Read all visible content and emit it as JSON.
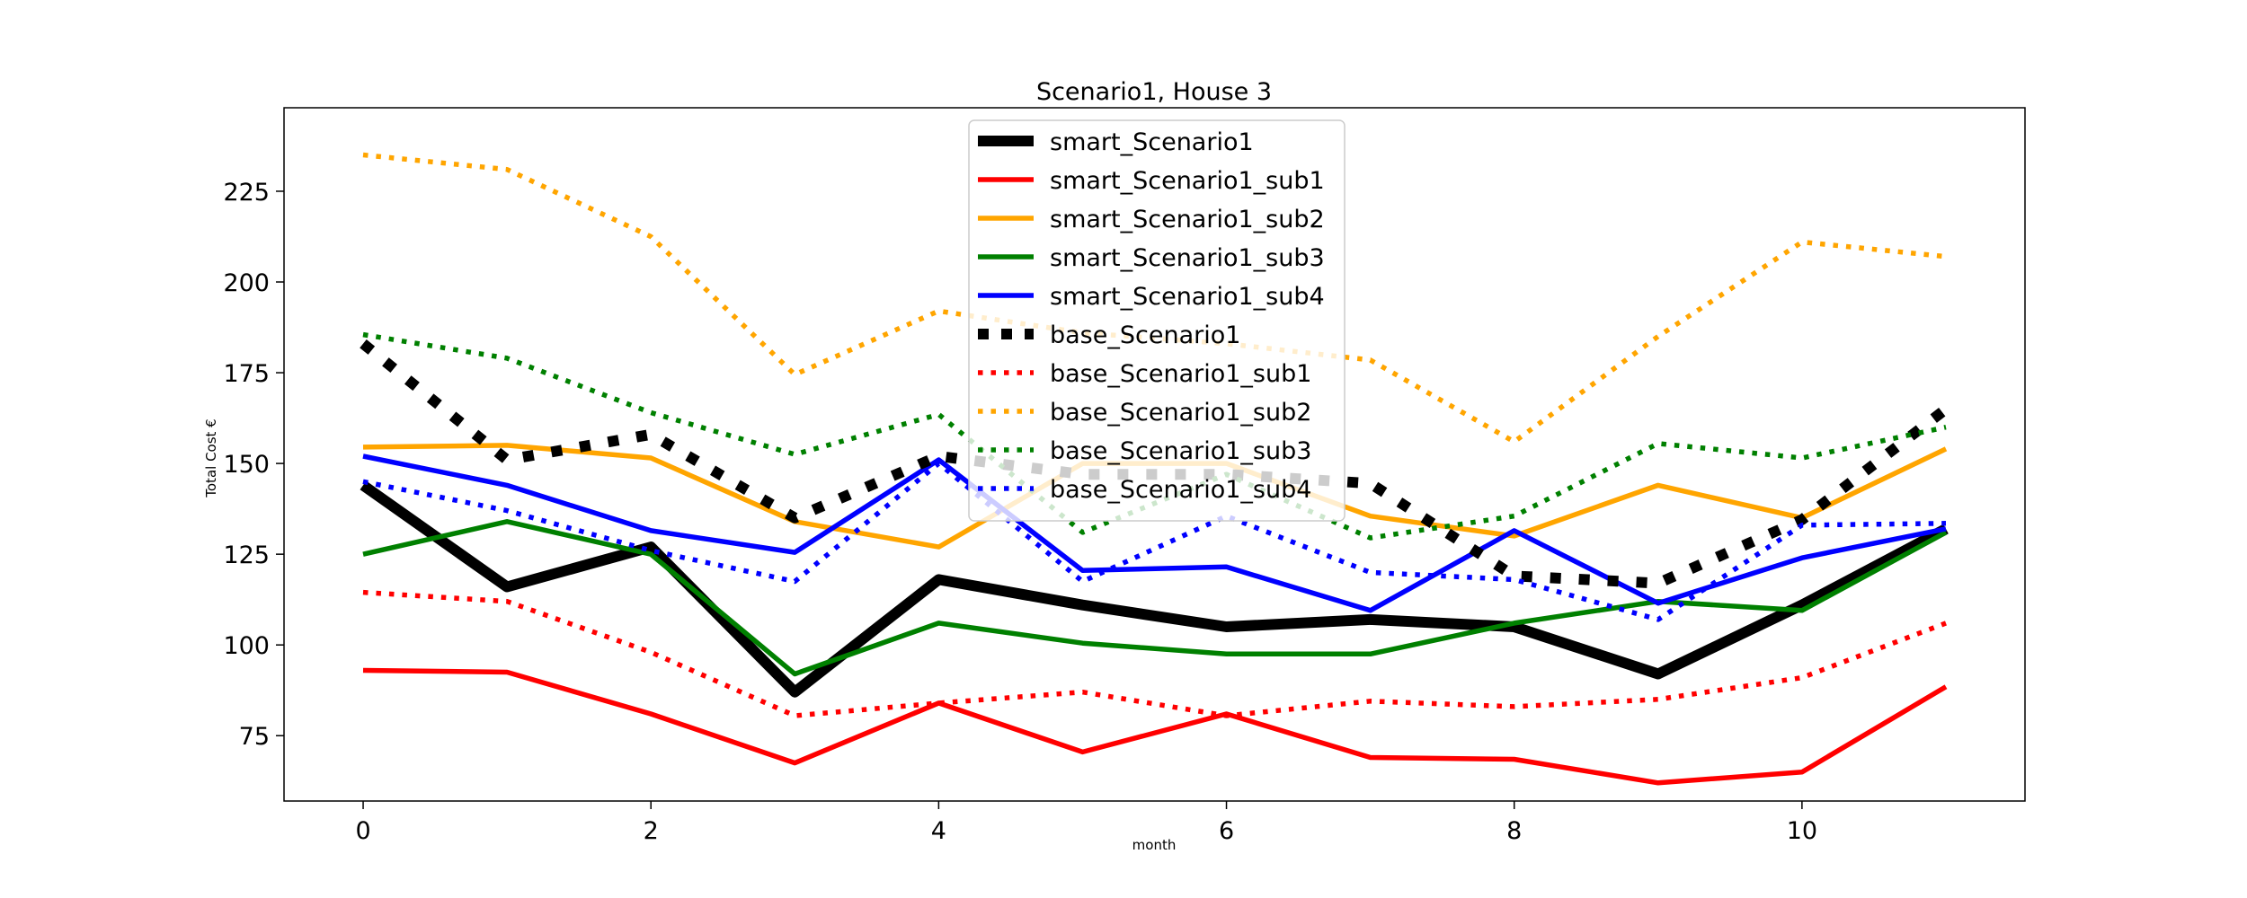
{
  "chart_data": {
    "type": "line",
    "title": "Scenario1, House 3",
    "xlabel": "month",
    "ylabel": "Total Cost €",
    "xlim": [
      -0.55,
      11.55
    ],
    "ylim": [
      57,
      248
    ],
    "x_ticks": [
      0,
      2,
      4,
      6,
      8,
      10
    ],
    "y_ticks": [
      75,
      100,
      125,
      150,
      175,
      200,
      225
    ],
    "grid": false,
    "legend_position": "top-center",
    "x": [
      0,
      1,
      2,
      3,
      4,
      5,
      6,
      7,
      8,
      9,
      10,
      11
    ],
    "series": [
      {
        "name": "smart_Scenario1",
        "color": "#000000",
        "style": "solid",
        "width": "thick",
        "values": [
          144,
          116,
          127,
          87,
          118,
          111,
          105,
          107,
          105,
          92,
          111,
          132
        ]
      },
      {
        "name": "smart_Scenario1_sub1",
        "color": "#ff0000",
        "style": "solid",
        "width": "normal",
        "values": [
          93,
          92.5,
          81,
          67.5,
          84,
          70.5,
          81,
          69,
          68.5,
          62,
          65,
          88.5
        ]
      },
      {
        "name": "smart_Scenario1_sub2",
        "color": "#ffa500",
        "style": "solid",
        "width": "normal",
        "values": [
          154.5,
          155,
          151.5,
          134,
          127,
          150,
          150,
          135.5,
          130,
          144,
          135,
          154
        ]
      },
      {
        "name": "smart_Scenario1_sub3",
        "color": "#008000",
        "style": "solid",
        "width": "normal",
        "values": [
          125,
          134,
          125,
          92,
          106,
          100.5,
          97.5,
          97.5,
          106,
          112,
          109.5,
          131
        ]
      },
      {
        "name": "smart_Scenario1_sub4",
        "color": "#0000ff",
        "style": "solid",
        "width": "normal",
        "values": [
          152,
          144,
          131.5,
          125.5,
          151,
          120.5,
          121.5,
          109.5,
          131.5,
          111.5,
          124,
          132
        ]
      },
      {
        "name": "base_Scenario1",
        "color": "#000000",
        "style": "dotted",
        "width": "thick",
        "values": [
          183,
          151,
          158,
          135,
          152,
          147,
          147,
          144.5,
          119,
          117,
          134.5,
          165
        ]
      },
      {
        "name": "base_Scenario1_sub1",
        "color": "#ff0000",
        "style": "dotted",
        "width": "normal",
        "values": [
          114.5,
          112,
          98,
          80.5,
          84,
          87,
          80.5,
          84.5,
          83,
          85,
          91,
          106
        ]
      },
      {
        "name": "base_Scenario1_sub2",
        "color": "#ffa500",
        "style": "dotted",
        "width": "normal",
        "values": [
          235,
          231,
          212.5,
          174.5,
          192,
          186,
          183,
          178.5,
          156,
          185,
          211,
          207
        ]
      },
      {
        "name": "base_Scenario1_sub3",
        "color": "#008000",
        "style": "dotted",
        "width": "normal",
        "values": [
          185.5,
          179,
          164,
          152.5,
          163.5,
          131,
          147,
          129.5,
          135.5,
          155.5,
          151.5,
          160
        ]
      },
      {
        "name": "base_Scenario1_sub4",
        "color": "#0000ff",
        "style": "dotted",
        "width": "normal",
        "values": [
          145,
          137,
          126,
          117.5,
          150,
          117.5,
          135.5,
          120,
          118,
          107,
          133,
          133.5
        ]
      }
    ]
  }
}
